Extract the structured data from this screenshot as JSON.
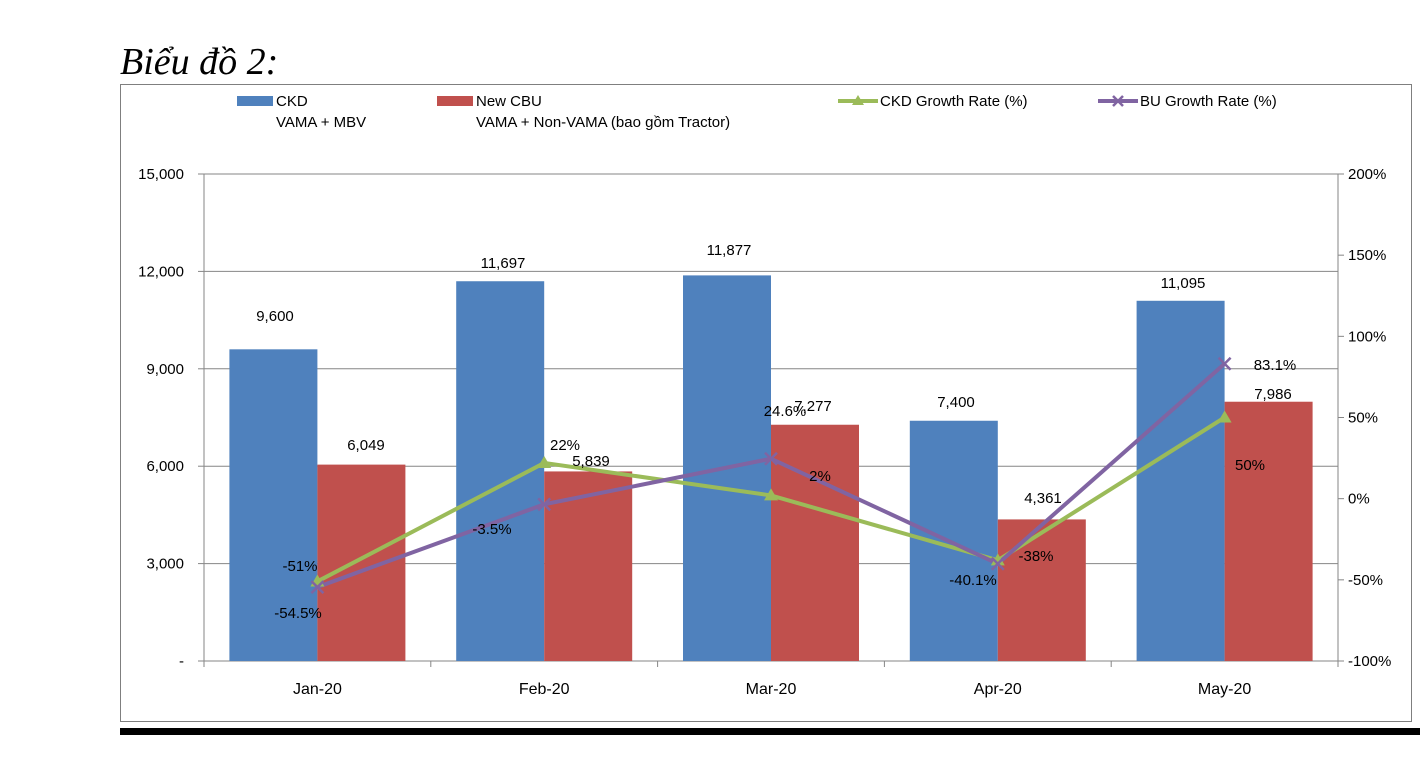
{
  "heading": "Biểu đồ 2:",
  "colors": {
    "ckd_bar": "#4f81bd",
    "cbu_bar": "#c0504d",
    "ckd_growth": "#9bbb59",
    "bu_growth": "#8064a2",
    "axis": "#868686",
    "text": "#000000"
  },
  "chart_data": {
    "type": "bar",
    "categories": [
      "Jan-20",
      "Feb-20",
      "Mar-20",
      "Apr-20",
      "May-20"
    ],
    "ylim": [
      0,
      15000
    ],
    "y_ticks": [
      "-",
      "3,000",
      "6,000",
      "9,000",
      "12,000",
      "15,000"
    ],
    "y2lim": [
      -100,
      200
    ],
    "y2_ticks": [
      "-100%",
      "-50%",
      "0%",
      "50%",
      "100%",
      "150%",
      "200%"
    ],
    "legend": {
      "placement": "top",
      "items": [
        {
          "label": "CKD",
          "sublabel": "VAMA + MBV"
        },
        {
          "label": "New CBU",
          "sublabel": "VAMA + Non-VAMA (bao gồm Tractor)"
        },
        {
          "label": "CKD Growth Rate (%)"
        },
        {
          "label": "BU Growth Rate (%)"
        }
      ]
    },
    "series": [
      {
        "name": "CKD",
        "kind": "bar",
        "axis": "left",
        "values": [
          9600,
          11697,
          11877,
          7400,
          11095
        ],
        "labels": [
          "9,600",
          "11,697",
          "11,877",
          "7,400",
          "11,095"
        ]
      },
      {
        "name": "New CBU",
        "kind": "bar",
        "axis": "left",
        "values": [
          6049,
          5839,
          7277,
          4361,
          7986
        ],
        "labels": [
          "6,049",
          "5,839",
          "7,277",
          "4,361",
          "7,986"
        ]
      },
      {
        "name": "CKD Growth Rate (%)",
        "kind": "line",
        "marker": "triangle",
        "axis": "right",
        "values": [
          -51,
          22,
          2,
          -38,
          50
        ],
        "labels": [
          "-51%",
          "22%",
          "2%",
          "-38%",
          "50%"
        ]
      },
      {
        "name": "BU Growth Rate (%)",
        "kind": "line",
        "marker": "x",
        "axis": "right",
        "values": [
          -54.5,
          -3.5,
          24.6,
          -40.1,
          83.1
        ],
        "labels": [
          "-54.5%",
          "-3.5%",
          "24.6%",
          "-40.1%",
          "83.1%"
        ]
      }
    ]
  }
}
